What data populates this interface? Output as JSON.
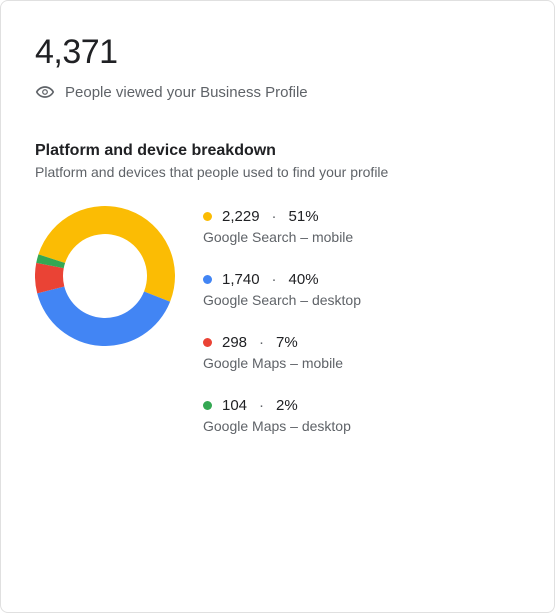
{
  "header": {
    "total": "4,371",
    "subtitle": "People viewed your Business Profile"
  },
  "section": {
    "title": "Platform and device breakdown",
    "subtitle": "Platform and devices that people used to find your profile"
  },
  "donut": {
    "type": "pie",
    "size": 140,
    "innerRadiusRatio": 0.6,
    "background_color": "#ffffff",
    "startAngleDeg": -162,
    "segments": [
      {
        "label": "Google Search – mobile",
        "value": 2229,
        "percent": 51,
        "color": "#fbbc04"
      },
      {
        "label": "Google Search – desktop",
        "value": 1740,
        "percent": 40,
        "color": "#4285f4"
      },
      {
        "label": "Google Maps – mobile",
        "value": 298,
        "percent": 7,
        "color": "#ea4335"
      },
      {
        "label": "Google Maps – desktop",
        "value": 104,
        "percent": 2,
        "color": "#34a853"
      }
    ]
  },
  "legend": [
    {
      "value": "2,229",
      "percent": "51%",
      "label": "Google Search – mobile",
      "color": "#fbbc04"
    },
    {
      "value": "1,740",
      "percent": "40%",
      "label": "Google Search – desktop",
      "color": "#4285f4"
    },
    {
      "value": "298",
      "percent": "7%",
      "label": "Google Maps – mobile",
      "color": "#ea4335"
    },
    {
      "value": "104",
      "percent": "2%",
      "label": "Google Maps – desktop",
      "color": "#34a853"
    }
  ],
  "icons": {
    "eye_color": "#5f6368"
  }
}
